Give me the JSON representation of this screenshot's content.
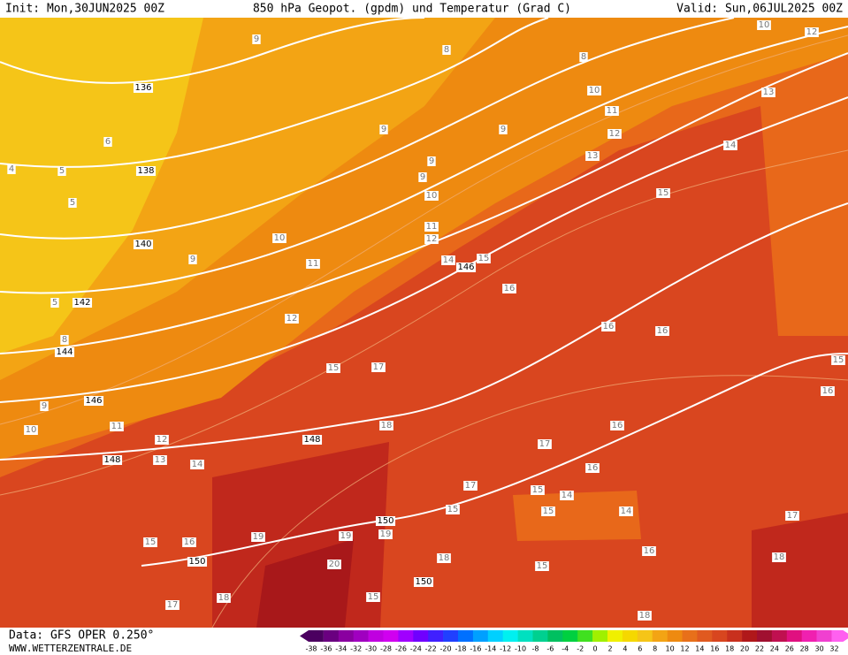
{
  "header": {
    "init": "Init: Mon,30JUN2025 00Z",
    "title": "850 hPa Geopot. (gpdm) und Temperatur (Grad C)",
    "valid": "Valid: Sun,06JUL2025 00Z"
  },
  "footer": {
    "data_source": "Data: GFS OPER 0.250°",
    "website": "WWW.WETTERZENTRALE.DE"
  },
  "geopotential_labels": [
    136,
    138,
    140,
    142,
    144,
    146,
    146,
    148,
    148,
    150,
    150,
    150
  ],
  "temperature_labels": [
    9,
    8,
    8,
    6,
    5,
    5,
    5,
    4,
    9,
    9,
    9,
    9,
    10,
    10,
    10,
    10,
    11,
    11,
    11,
    11,
    12,
    12,
    12,
    12,
    12,
    13,
    13,
    13,
    14,
    14,
    14,
    14,
    14,
    15,
    15,
    15,
    15,
    15,
    15,
    15,
    15,
    15,
    15,
    16,
    16,
    16,
    16,
    16,
    16,
    16,
    16,
    17,
    17,
    17,
    17,
    17,
    18,
    18,
    18,
    18,
    18,
    19,
    19,
    19,
    20,
    8,
    9,
    9,
    10
  ],
  "colorbar": {
    "labels": [
      -38,
      -36,
      -34,
      -32,
      -30,
      -28,
      -26,
      -24,
      -22,
      -20,
      -18,
      -16,
      -14,
      -12,
      -10,
      -8,
      -6,
      -4,
      -2,
      0,
      2,
      4,
      6,
      8,
      10,
      12,
      14,
      16,
      18,
      20,
      22,
      24,
      26,
      28,
      30,
      32
    ],
    "colors": [
      "#4b0060",
      "#6a0080",
      "#8a00a0",
      "#a000c0",
      "#c000e0",
      "#d000f0",
      "#a000ff",
      "#7000ff",
      "#4020ff",
      "#2040ff",
      "#0070ff",
      "#00a0ff",
      "#00d0ff",
      "#00f0f0",
      "#00e0c0",
      "#00d090",
      "#00c060",
      "#00d040",
      "#40e020",
      "#a0f000",
      "#f0f000",
      "#f5d800",
      "#f5c518",
      "#f3a414",
      "#ee8a10",
      "#e8701a",
      "#e05a20",
      "#d8461f",
      "#c8301e",
      "#b0181a",
      "#a01030",
      "#c01050",
      "#e01080",
      "#f020b0",
      "#f040d0",
      "#ff60f0"
    ]
  }
}
